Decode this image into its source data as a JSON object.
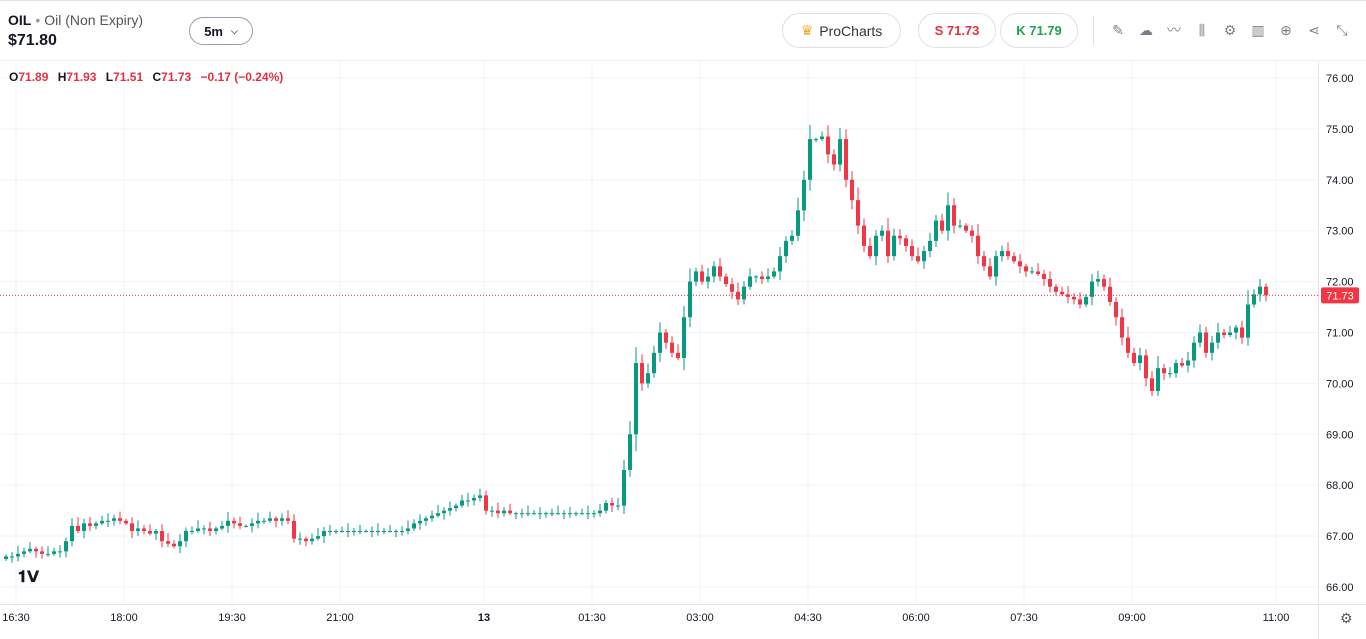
{
  "header": {
    "symbol": "OIL",
    "name": "Oil (Non Expiry)",
    "price": "$71.80",
    "timeframe": "5m",
    "procharts": "ProCharts",
    "sell": "S 71.73",
    "buy": "K 71.79"
  },
  "ohlc": {
    "o_label": "O",
    "o": "71.89",
    "h_label": "H",
    "h": "71.93",
    "l_label": "L",
    "l": "71.51",
    "c_label": "C",
    "c": "71.73",
    "change": "−0.17 (−0.24%)"
  },
  "tools": [
    "pencil-icon",
    "cloud-icon",
    "line-chart-icon",
    "candles-icon",
    "gear-icon",
    "bar-chart-icon",
    "plus-circle-icon",
    "share-icon",
    "collapse-icon"
  ],
  "logo": "TV",
  "colors": {
    "up": "#089981",
    "down": "#f23645",
    "grid": "#f0f3fa"
  },
  "chart_data": {
    "type": "candlestick",
    "ylim": [
      65.8,
      76.3
    ],
    "y_ticks": [
      "66.00",
      "67.00",
      "68.00",
      "69.00",
      "70.00",
      "71.00",
      "72.00",
      "73.00",
      "74.00",
      "75.00",
      "76.00"
    ],
    "x_ticks": [
      "16:30",
      "18:00",
      "19:30",
      "21:00",
      "13",
      "01:30",
      "03:00",
      "04:30",
      "06:00",
      "07:30",
      "09:00",
      "11:00"
    ],
    "x_tick_index": [
      2,
      20,
      38,
      56,
      80,
      98,
      116,
      134,
      152,
      170,
      188,
      212
    ],
    "current_price": 71.73,
    "current_label": "71.73",
    "first_open": 66.55,
    "closes": [
      66.6,
      66.6,
      66.65,
      66.7,
      66.75,
      66.7,
      66.65,
      66.65,
      66.7,
      66.7,
      66.9,
      67.2,
      67.1,
      67.25,
      67.2,
      67.25,
      67.3,
      67.3,
      67.35,
      67.3,
      67.25,
      67.1,
      67.15,
      67.1,
      67.05,
      67.1,
      66.9,
      66.85,
      66.8,
      66.9,
      67.1,
      67.1,
      67.15,
      67.15,
      67.1,
      67.15,
      67.2,
      67.3,
      67.25,
      67.2,
      67.2,
      67.25,
      67.3,
      67.3,
      67.35,
      67.3,
      67.35,
      67.3,
      66.95,
      66.95,
      66.9,
      66.95,
      67.0,
      67.1,
      67.1,
      67.1,
      67.1,
      67.1,
      67.1,
      67.1,
      67.1,
      67.1,
      67.1,
      67.1,
      67.1,
      67.1,
      67.1,
      67.15,
      67.25,
      67.3,
      67.35,
      67.4,
      67.45,
      67.5,
      67.55,
      67.6,
      67.7,
      67.7,
      67.75,
      67.8,
      67.5,
      67.5,
      67.45,
      67.5,
      67.45,
      67.45,
      67.45,
      67.45,
      67.45,
      67.45,
      67.45,
      67.45,
      67.45,
      67.45,
      67.45,
      67.45,
      67.45,
      67.45,
      67.45,
      67.5,
      67.65,
      67.6,
      67.6,
      68.3,
      69.0,
      70.4,
      70.0,
      70.2,
      70.6,
      71.0,
      70.8,
      70.6,
      70.5,
      71.3,
      72.0,
      72.2,
      72.0,
      72.1,
      72.3,
      72.1,
      71.95,
      71.8,
      71.65,
      71.9,
      72.1,
      72.1,
      72.05,
      72.1,
      72.2,
      72.5,
      72.8,
      72.9,
      73.4,
      74.0,
      74.8,
      74.8,
      74.85,
      74.5,
      74.3,
      74.8,
      74.0,
      73.6,
      73.1,
      72.7,
      72.5,
      72.9,
      73.0,
      72.5,
      72.9,
      72.85,
      72.7,
      72.5,
      72.4,
      72.6,
      72.8,
      73.2,
      73.0,
      73.5,
      73.1,
      73.1,
      73.0,
      72.9,
      72.5,
      72.3,
      72.1,
      72.5,
      72.6,
      72.5,
      72.4,
      72.3,
      72.2,
      72.2,
      72.15,
      72.05,
      71.9,
      71.8,
      71.75,
      71.7,
      71.65,
      71.55,
      71.7,
      72.0,
      72.05,
      71.9,
      71.6,
      71.3,
      70.9,
      70.6,
      70.4,
      70.55,
      70.1,
      69.85,
      70.3,
      70.2,
      70.2,
      70.4,
      70.35,
      70.45,
      70.8,
      71.0,
      70.6,
      70.8,
      71.0,
      70.95,
      71.0,
      71.1,
      70.9,
      71.55,
      71.75,
      71.9,
      71.73
    ]
  }
}
